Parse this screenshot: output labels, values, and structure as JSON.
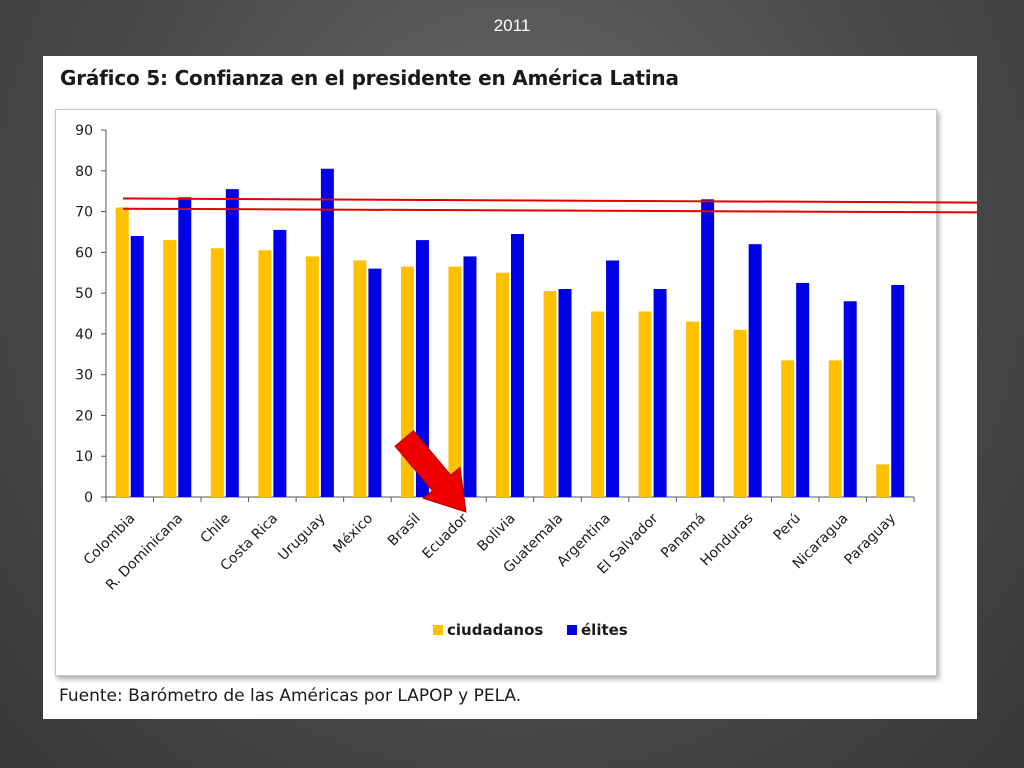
{
  "slide": {
    "title": "2011"
  },
  "panel": {
    "title": "Gráfico 5: Confianza en el presidente en América Latina",
    "source": "Fuente: Barómetro de las Américas por LAPOP y PELA."
  },
  "chart_data": {
    "type": "bar",
    "categories": [
      "Colombia",
      "R. Dominicana",
      "Chile",
      "Costa Rica",
      "Uruguay",
      "México",
      "Brasil",
      "Ecuador",
      "Bolivia",
      "Guatemala",
      "Argentina",
      "El Salvador",
      "Panamá",
      "Honduras",
      "Perú",
      "Nicaragua",
      "Paraguay"
    ],
    "series": [
      {
        "name": "ciudadanos",
        "color": "#FFC000",
        "values": [
          71,
          63,
          61,
          60.5,
          59,
          58,
          56.5,
          56.5,
          55,
          50.5,
          45.5,
          45.5,
          43,
          41,
          33.5,
          33.5,
          8
        ]
      },
      {
        "name": "élites",
        "color": "#0000E6",
        "values": [
          64,
          73.5,
          75.5,
          65.5,
          80.5,
          56,
          63,
          59,
          64.5,
          51,
          58,
          51,
          73,
          62,
          52.5,
          48,
          52
        ]
      }
    ],
    "yticks": [
      0,
      10,
      20,
      30,
      40,
      50,
      60,
      70,
      80,
      90
    ],
    "ylim": [
      0,
      90
    ],
    "grid": false,
    "legend_position": "bottom",
    "annotations": [
      {
        "type": "horizontal-line",
        "color": "#E00000",
        "y_left": 73.2,
        "y_right": 72.2
      },
      {
        "type": "horizontal-line",
        "color": "#E00000",
        "y_left": 70.7,
        "y_right": 69.8
      },
      {
        "type": "arrow",
        "color": "#EE0000",
        "points_to": "Ecuador"
      }
    ]
  }
}
